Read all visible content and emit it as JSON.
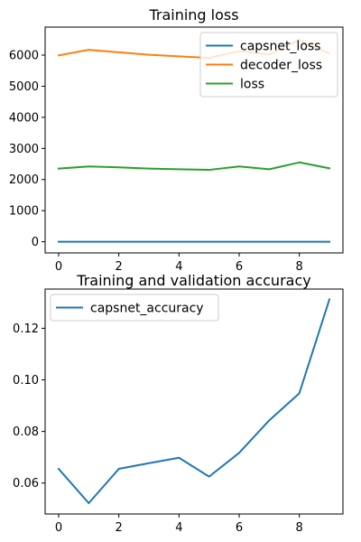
{
  "chart_data": [
    {
      "type": "line",
      "title": "Training loss",
      "xlabel": "",
      "ylabel": "",
      "xlim": [
        -0.45,
        9.45
      ],
      "ylim": [
        -360,
        6900
      ],
      "x_ticks": [
        0,
        2,
        4,
        6,
        8
      ],
      "x_tick_labels": [
        "0",
        "2",
        "4",
        "6",
        "8"
      ],
      "y_ticks": [
        0,
        1000,
        2000,
        3000,
        4000,
        5000,
        6000
      ],
      "y_tick_labels": [
        "0",
        "1000",
        "2000",
        "3000",
        "4000",
        "5000",
        "6000"
      ],
      "legend_position": "top-right",
      "x": [
        0,
        1,
        2,
        3,
        4,
        5,
        6,
        7,
        8,
        9
      ],
      "series": [
        {
          "name": "capsnet_loss",
          "color": "#1f77b4",
          "values": [
            1,
            1,
            1,
            1,
            1,
            1,
            1,
            1,
            1,
            1
          ]
        },
        {
          "name": "decoder_loss",
          "color": "#ff7f0e",
          "values": [
            5990,
            6170,
            6090,
            6010,
            5960,
            5910,
            6130,
            6020,
            6490,
            6050
          ]
        },
        {
          "name": "loss",
          "color": "#2ca02c",
          "values": [
            2350,
            2420,
            2390,
            2350,
            2330,
            2310,
            2420,
            2330,
            2550,
            2360
          ]
        }
      ]
    },
    {
      "type": "line",
      "title": "Training and validation accuracy",
      "xlabel": "",
      "ylabel": "",
      "xlim": [
        -0.45,
        9.45
      ],
      "ylim": [
        0.048,
        0.1352
      ],
      "x_ticks": [
        0,
        2,
        4,
        6,
        8
      ],
      "x_tick_labels": [
        "0",
        "2",
        "4",
        "6",
        "8"
      ],
      "y_ticks": [
        0.06,
        0.08,
        0.1,
        0.12
      ],
      "y_tick_labels": [
        "0.06",
        "0.08",
        "0.10",
        "0.12"
      ],
      "legend_position": "top-left",
      "x": [
        0,
        1,
        2,
        3,
        4,
        5,
        6,
        7,
        8,
        9
      ],
      "series": [
        {
          "name": "capsnet_accuracy",
          "color": "#1f77b4",
          "values": [
            0.0655,
            0.0522,
            0.0655,
            0.0677,
            0.0698,
            0.0625,
            0.0717,
            0.0843,
            0.0948,
            0.1312
          ]
        }
      ]
    }
  ]
}
